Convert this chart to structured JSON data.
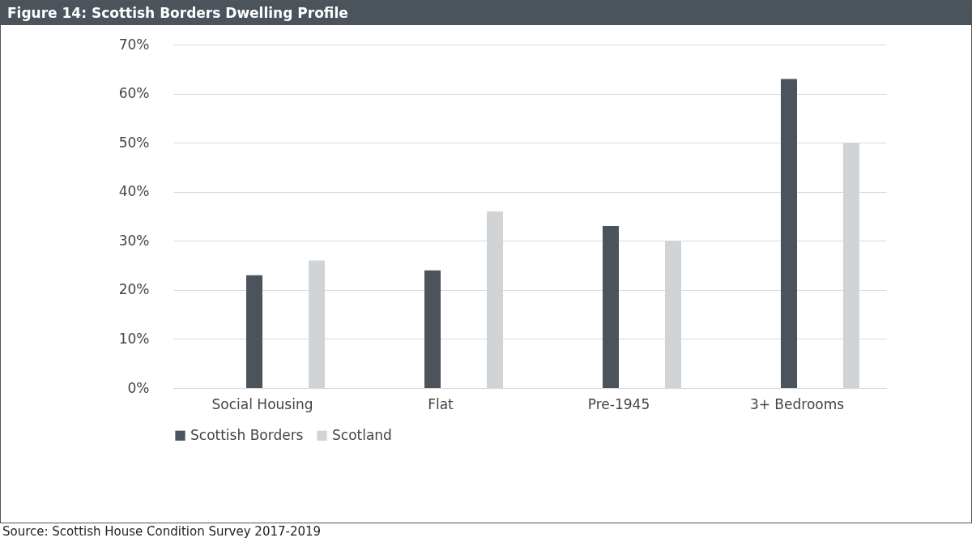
{
  "chart_data": {
    "type": "bar",
    "title": "Figure 14: Scottish Borders Dwelling Profile",
    "categories": [
      "Social Housing",
      "Flat",
      "Pre-1945",
      "3+ Bedrooms"
    ],
    "series": [
      {
        "name": "Scottish Borders",
        "color": "#4b535c",
        "values": [
          23,
          24,
          33,
          63
        ]
      },
      {
        "name": "Scotland",
        "color": "#d0d4d7",
        "values": [
          26,
          36,
          30,
          50
        ]
      }
    ],
    "ylim": [
      0,
      70
    ],
    "yticks": [
      {
        "value": 0,
        "label": "0%"
      },
      {
        "value": 10,
        "label": "10%"
      },
      {
        "value": 20,
        "label": "20%"
      },
      {
        "value": 30,
        "label": "30%"
      },
      {
        "value": 40,
        "label": "40%"
      },
      {
        "value": 50,
        "label": "50%"
      },
      {
        "value": 60,
        "label": "60%"
      },
      {
        "value": 70,
        "label": "70%"
      }
    ],
    "grid": "y",
    "legend": "bottom",
    "annotations": [
      "Source: Scottish House Condition Survey 2017-2019"
    ]
  }
}
